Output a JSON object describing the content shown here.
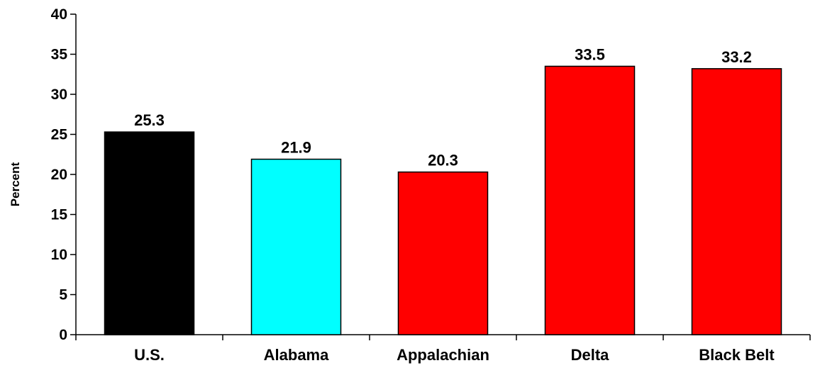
{
  "chart_data": {
    "type": "bar",
    "title": "",
    "xlabel": "",
    "ylabel": "Percent",
    "ylim": [
      0,
      40
    ],
    "yticks": [
      0,
      5,
      10,
      15,
      20,
      25,
      30,
      35,
      40
    ],
    "grid": false,
    "categories": [
      "U.S.",
      "Alabama",
      "Appalachian",
      "Delta",
      "Black Belt"
    ],
    "values": [
      25.3,
      21.9,
      20.3,
      33.5,
      33.2
    ],
    "data_labels": [
      "25.3",
      "21.9",
      "20.3",
      "33.5",
      "33.2"
    ],
    "colors": [
      "#000000",
      "#00ffff",
      "#ff0000",
      "#ff0000",
      "#ff0000"
    ]
  }
}
